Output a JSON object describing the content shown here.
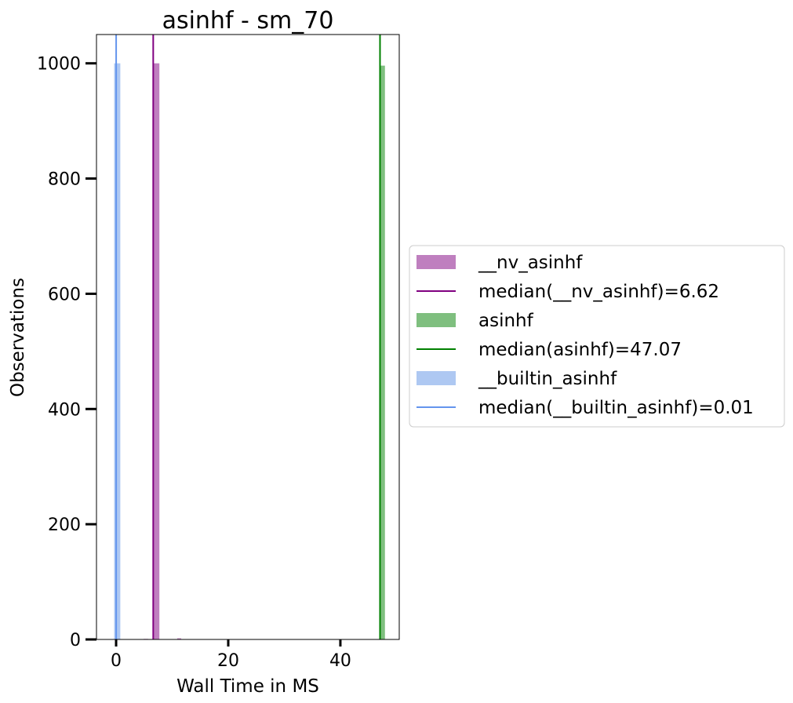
{
  "chart_data": {
    "type": "histogram",
    "title": "asinhf - sm_70",
    "xlabel": "Wall Time in MS",
    "ylabel": "Observations",
    "xlim": [
      -3.5,
      50.5
    ],
    "ylim": [
      0,
      1050
    ],
    "xticks": [
      0,
      20,
      40
    ],
    "yticks": [
      0,
      200,
      400,
      600,
      800,
      1000
    ],
    "grid": false,
    "legend_position": "outside-right",
    "series": [
      {
        "name": "__nv_asinhf",
        "color": "#bf7fbf",
        "bars": [
          {
            "x0": 6.62,
            "x1": 7.72,
            "count": 1000
          },
          {
            "x0": 4.9,
            "x1": 5.7,
            "count": 1
          },
          {
            "x0": 10.9,
            "x1": 11.6,
            "count": 2
          }
        ],
        "median": 6.62,
        "median_label": "median(__nv_asinhf)=6.62",
        "median_color": "#800080"
      },
      {
        "name": "asinhf",
        "color": "#7fbf7f",
        "bars": [
          {
            "x0": 47.07,
            "x1": 47.95,
            "count": 996
          }
        ],
        "median": 47.07,
        "median_label": "median(asinhf)=47.07",
        "median_color": "#008000"
      },
      {
        "name": "__builtin_asinhf",
        "color": "#aec8f2",
        "bars": [
          {
            "x0": -0.35,
            "x1": 0.75,
            "count": 1000
          }
        ],
        "median": 0.01,
        "median_label": "median(__builtin_asinhf)=0.01",
        "median_color": "#6495ed"
      }
    ]
  }
}
